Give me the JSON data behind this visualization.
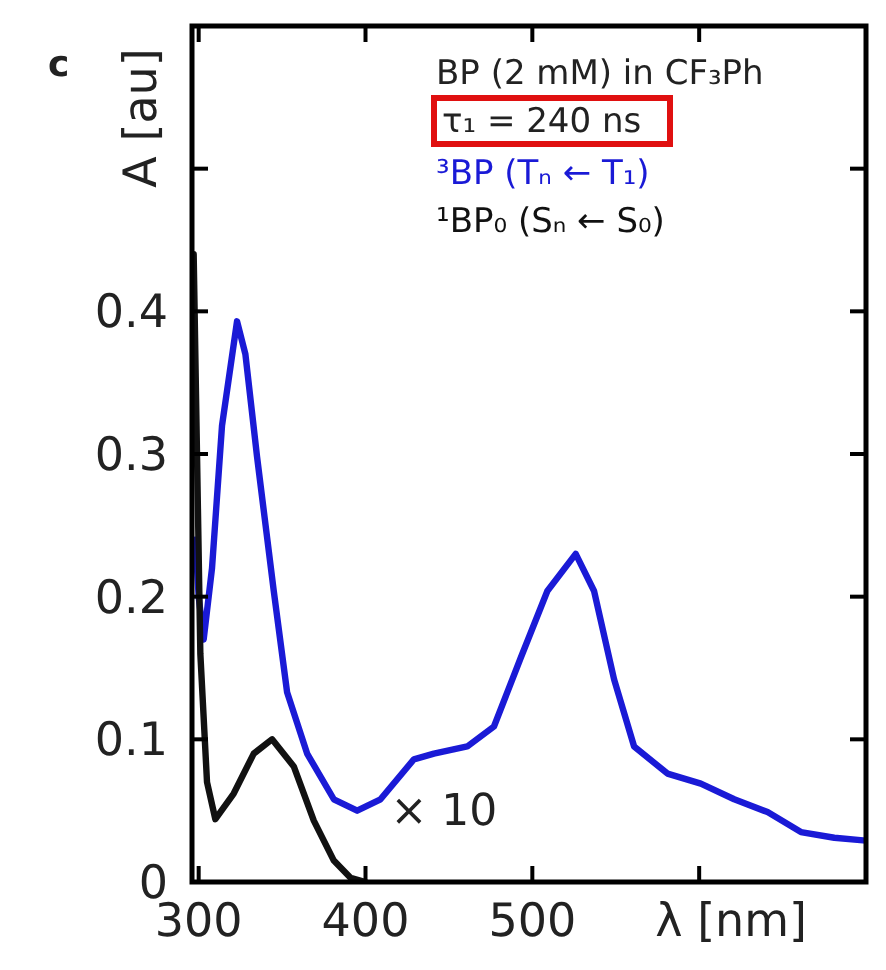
{
  "chart_data": {
    "type": "line",
    "title": "BP (2 mM) in CF₃Ph",
    "xlabel": "λ [nm]",
    "ylabel": "A [au]",
    "xlim": [
      296,
      700
    ],
    "xticks": [
      300,
      400,
      500,
      {
        "value": 600,
        "label": null
      },
      {
        "value": 700,
        "label": null
      }
    ],
    "ylim": [
      0,
      0.6
    ],
    "yticks": [
      0,
      0.1,
      0.2,
      0.3,
      0.4,
      {
        "value": 0.5,
        "label": null
      }
    ],
    "grid": false,
    "legend": "top right",
    "line_style": "solid",
    "annotations": [
      "c",
      "τ₁ = 240 ns",
      "× 10"
    ],
    "series": [
      {
        "name": "³BP (Tₙ ← T₁)",
        "color": "#1a1ad6",
        "x": [
          298,
          300,
          303,
          308,
          314,
          323,
          328,
          335,
          345,
          353,
          365,
          381,
          395,
          409,
          429,
          441,
          461,
          477,
          493,
          509,
          526,
          537,
          549,
          561,
          581,
          601,
          621,
          641,
          661,
          681,
          700
        ],
        "values": [
          0.24,
          0.2,
          0.17,
          0.22,
          0.32,
          0.393,
          0.37,
          0.298,
          0.204,
          0.133,
          0.09,
          0.058,
          0.05,
          0.058,
          0.086,
          0.09,
          0.095,
          0.109,
          0.157,
          0.204,
          0.23,
          0.204,
          0.142,
          0.095,
          0.076,
          0.069,
          0.058,
          0.049,
          0.035,
          0.031,
          0.029
        ]
      },
      {
        "name": "¹BP₀ (Sₙ ← S₀)",
        "color": "#111111",
        "x": [
          297,
          299,
          301,
          305,
          310,
          321,
          333,
          344,
          357,
          369,
          381,
          391,
          400
        ],
        "values": [
          0.44,
          0.3,
          0.16,
          0.07,
          0.044,
          0.062,
          0.09,
          0.1,
          0.081,
          0.043,
          0.015,
          0.003,
          0
        ]
      }
    ]
  }
}
